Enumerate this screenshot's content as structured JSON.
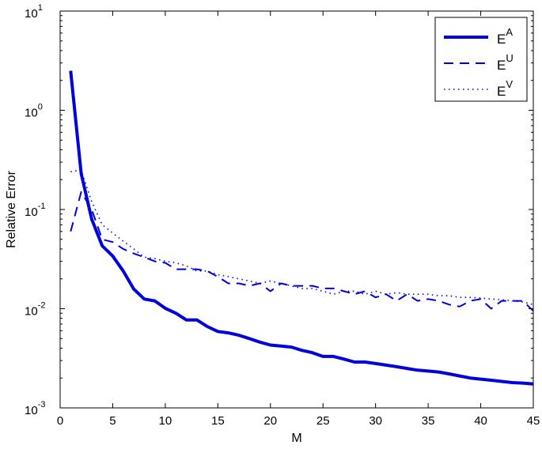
{
  "chart_data": {
    "type": "line",
    "xlabel": "M",
    "ylabel": "Relative Error",
    "xlim": [
      0,
      45
    ],
    "ylim": [
      0.001,
      10
    ],
    "yscale": "log",
    "x_ticks": [
      "0",
      "5",
      "10",
      "15",
      "20",
      "25",
      "30",
      "35",
      "40",
      "45"
    ],
    "y_ticks": [
      {
        "base": "10",
        "exp": "-3"
      },
      {
        "base": "10",
        "exp": "-2"
      },
      {
        "base": "10",
        "exp": "-1"
      },
      {
        "base": "10",
        "exp": "0"
      },
      {
        "base": "10",
        "exp": "1"
      }
    ],
    "grid": false,
    "legend_position": "top-right",
    "x": [
      1,
      2,
      3,
      4,
      5,
      6,
      7,
      8,
      9,
      10,
      11,
      12,
      13,
      14,
      15,
      16,
      17,
      18,
      19,
      20,
      21,
      22,
      23,
      24,
      25,
      26,
      27,
      28,
      29,
      30,
      31,
      32,
      33,
      34,
      35,
      36,
      37,
      38,
      39,
      40,
      41,
      42,
      43,
      44,
      45
    ],
    "series": [
      {
        "name": "E",
        "superscript": "A",
        "style": "solid",
        "color": "#0000dd",
        "values": [
          2.5,
          0.23,
          0.08,
          0.043,
          0.034,
          0.024,
          0.0158,
          0.0125,
          0.012,
          0.0101,
          0.009,
          0.0077,
          0.0077,
          0.0066,
          0.0059,
          0.0057,
          0.0054,
          0.005,
          0.0046,
          0.0043,
          0.0042,
          0.0041,
          0.0038,
          0.0036,
          0.0033,
          0.0033,
          0.0031,
          0.0029,
          0.0029,
          0.0028,
          0.0027,
          0.0026,
          0.0025,
          0.0024,
          0.00235,
          0.0023,
          0.0022,
          0.0021,
          0.002,
          0.00195,
          0.0019,
          0.00185,
          0.0018,
          0.00178,
          0.00174
        ]
      },
      {
        "name": "E",
        "superscript": "U",
        "style": "dashed",
        "color": "#0000dd",
        "values": [
          0.06,
          0.15,
          0.1,
          0.05,
          0.047,
          0.04,
          0.036,
          0.033,
          0.03,
          0.029,
          0.025,
          0.025,
          0.025,
          0.024,
          0.021,
          0.018,
          0.018,
          0.017,
          0.018,
          0.015,
          0.018,
          0.017,
          0.017,
          0.017,
          0.016,
          0.016,
          0.015,
          0.014,
          0.015,
          0.013,
          0.014,
          0.012,
          0.014,
          0.012,
          0.0125,
          0.012,
          0.011,
          0.0105,
          0.012,
          0.0125,
          0.01,
          0.012,
          0.012,
          0.012,
          0.0095
        ]
      },
      {
        "name": "E",
        "superscript": "V",
        "style": "dotted",
        "color": "#0000dd",
        "values": [
          0.24,
          0.25,
          0.12,
          0.07,
          0.058,
          0.048,
          0.04,
          0.033,
          0.032,
          0.03,
          0.029,
          0.027,
          0.024,
          0.024,
          0.022,
          0.021,
          0.02,
          0.019,
          0.018,
          0.019,
          0.018,
          0.017,
          0.016,
          0.016,
          0.015,
          0.014,
          0.015,
          0.015,
          0.014,
          0.015,
          0.014,
          0.0145,
          0.014,
          0.014,
          0.014,
          0.0135,
          0.0135,
          0.013,
          0.013,
          0.0128,
          0.0125,
          0.0123,
          0.012,
          0.0117,
          0.011
        ]
      }
    ]
  }
}
